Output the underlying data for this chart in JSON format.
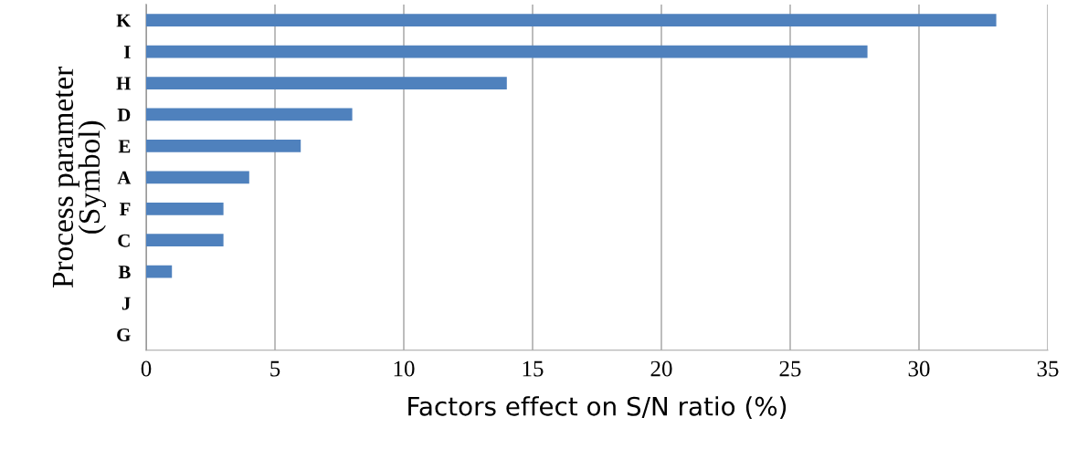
{
  "chart_data": {
    "type": "bar",
    "orientation": "horizontal",
    "categories": [
      "K",
      "I",
      "H",
      "D",
      "E",
      "A",
      "F",
      "C",
      "B",
      "J",
      "G"
    ],
    "values": [
      33,
      28,
      14,
      8,
      6,
      4,
      3,
      3,
      1,
      0,
      0
    ],
    "color": "#4f81bd",
    "xlabel": "Factors effect on S/N ratio (%)",
    "ylabel": "Process parameter\n(Symbol)",
    "xlim": [
      0,
      35
    ],
    "xticks": [
      0,
      5,
      10,
      15,
      20,
      25,
      30,
      35
    ],
    "grid": "x"
  }
}
